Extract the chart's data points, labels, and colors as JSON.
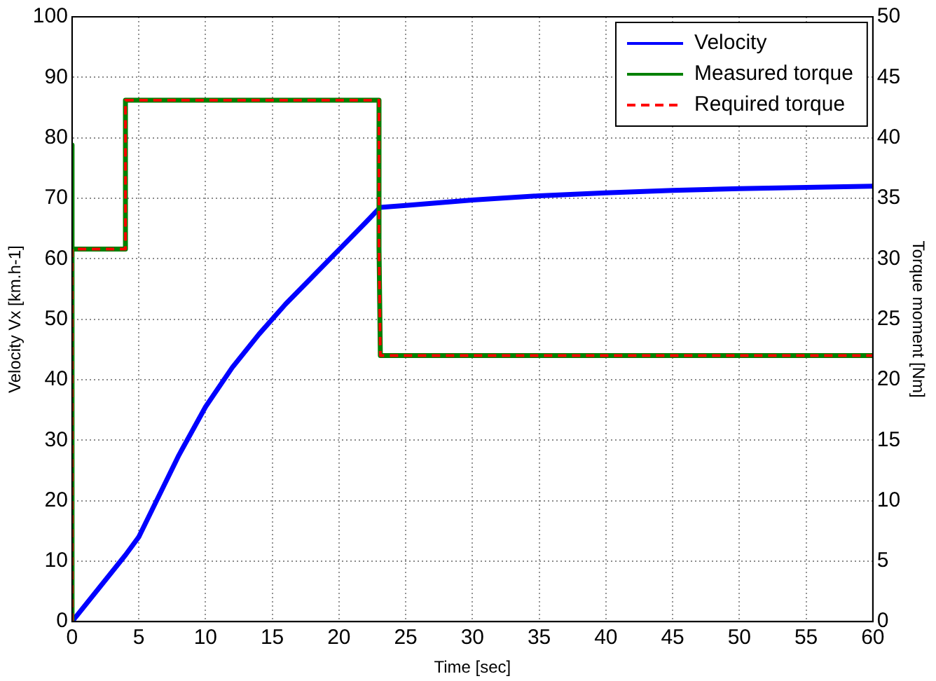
{
  "chart_data": {
    "type": "line",
    "xlabel": "Time [sec]",
    "ylabel": "Velocity Vx [km.h-1]",
    "y2label": "Torque moment [Nm]",
    "xlim": [
      0,
      60
    ],
    "xticks": [
      0,
      5,
      10,
      15,
      20,
      25,
      30,
      35,
      40,
      45,
      50,
      55,
      60
    ],
    "ylim": [
      0,
      100
    ],
    "yticks": [
      0,
      10,
      20,
      30,
      40,
      50,
      60,
      70,
      80,
      90,
      100
    ],
    "y2lim": [
      0,
      50
    ],
    "y2ticks": [
      0,
      5,
      10,
      15,
      20,
      25,
      30,
      35,
      40,
      45,
      50
    ],
    "grid": true,
    "legend": "top right",
    "marker": "none",
    "series": [
      {
        "name": "Velocity",
        "color": "#0000ff",
        "line_style": "solid",
        "x": [
          0,
          2,
          4,
          5,
          6,
          8,
          10,
          12,
          14,
          16,
          18,
          20,
          22,
          23,
          23.1,
          25,
          30,
          35,
          40,
          45,
          50,
          55,
          60
        ],
        "values": [
          0,
          5.5,
          11,
          14,
          18.5,
          27.5,
          35.5,
          42,
          47.5,
          52.5,
          57,
          61.5,
          66,
          68.3,
          68.5,
          68.8,
          69.7,
          70.4,
          70.9,
          71.3,
          71.6,
          71.8,
          72
        ]
      },
      {
        "name": "Measured torque",
        "color": "#008000",
        "line_style": "solid",
        "axis": "y2",
        "x": [
          0,
          0,
          0,
          4,
          4,
          23,
          23,
          23.1,
          60
        ],
        "values": [
          0,
          39.4,
          30.8,
          30.8,
          43.1,
          43.1,
          30.9,
          22,
          22
        ]
      },
      {
        "name": "Required torque",
        "color": "#ff0000",
        "line_style": "dashed",
        "axis": "y2",
        "x": [
          0,
          0,
          4,
          4,
          23,
          23,
          23.1,
          60
        ],
        "values": [
          0,
          30.8,
          30.8,
          43.1,
          43.1,
          30.9,
          22,
          22
        ]
      }
    ]
  }
}
